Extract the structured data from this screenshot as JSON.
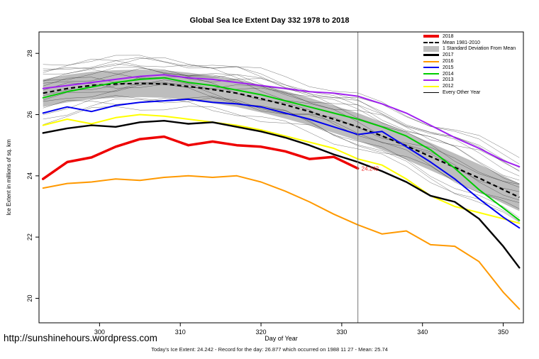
{
  "page": {
    "title": "Global Sea Ice Extent Day 332 1978 to 2018",
    "footer_url": "http://sunshinehours.wordpress.com",
    "footer_caption": "Today's Ice Extent: 24.242 - Record for the day: 26.877 which occurred on 1988 11 27 - Mean: 25.74"
  },
  "chart_data": {
    "type": "line",
    "title": "Global Sea Ice Extent Day 332 1978 to 2018",
    "xlabel": "Day of Year",
    "ylabel": "Ice Extent in millions of sq. km",
    "xlim": [
      292.5,
      352.5
    ],
    "ylim": [
      19.2,
      28.7
    ],
    "x_ticks": [
      300,
      310,
      320,
      330,
      340,
      350
    ],
    "y_ticks": [
      20,
      22,
      24,
      26,
      28
    ],
    "grid": false,
    "legend_position": "top-right",
    "x": [
      293,
      296,
      299,
      302,
      305,
      308,
      311,
      314,
      317,
      320,
      323,
      326,
      329,
      332,
      335,
      338,
      341,
      344,
      347,
      350,
      352
    ],
    "mean_series": {
      "name": "Mean 1981-2010",
      "color": "#000000",
      "dashed": true,
      "values": [
        26.7,
        26.85,
        26.95,
        27.0,
        27.02,
        27.0,
        26.92,
        26.82,
        26.7,
        26.52,
        26.32,
        26.1,
        25.85,
        25.6,
        25.3,
        24.98,
        24.63,
        24.28,
        23.93,
        23.55,
        23.3
      ]
    },
    "std_band": {
      "name": "1 Standard Deviation From Mean",
      "color": "#bdbdbd",
      "halfwidth": 0.45
    },
    "series": [
      {
        "name": "2018",
        "color": "#ee0000",
        "width": 3.5,
        "values": [
          23.9,
          24.45,
          24.6,
          24.95,
          25.2,
          25.28,
          25.0,
          25.12,
          25.0,
          24.95,
          24.8,
          24.55,
          24.62,
          24.242,
          null,
          null,
          null,
          null,
          null,
          null,
          null
        ]
      },
      {
        "name": "2017",
        "color": "#000000",
        "width": 2.4,
        "values": [
          25.4,
          25.55,
          25.65,
          25.6,
          25.75,
          25.8,
          25.7,
          25.75,
          25.6,
          25.45,
          25.25,
          25.0,
          24.7,
          24.45,
          24.15,
          23.8,
          23.35,
          23.15,
          22.6,
          21.7,
          21.0
        ]
      },
      {
        "name": "2016",
        "color": "#ff9900",
        "width": 2,
        "values": [
          23.6,
          23.75,
          23.8,
          23.9,
          23.85,
          23.95,
          24.0,
          23.95,
          24.0,
          23.8,
          23.5,
          23.15,
          22.75,
          22.4,
          22.1,
          22.2,
          21.75,
          21.7,
          21.2,
          20.2,
          19.65
        ]
      },
      {
        "name": "2015",
        "color": "#0000ee",
        "width": 2,
        "values": [
          26.05,
          26.25,
          26.1,
          26.3,
          26.4,
          26.45,
          26.5,
          26.4,
          26.35,
          26.25,
          26.05,
          25.85,
          25.6,
          25.35,
          25.45,
          24.95,
          24.45,
          23.9,
          23.25,
          22.65,
          22.3
        ]
      },
      {
        "name": "2014",
        "color": "#00cc00",
        "width": 2,
        "values": [
          26.55,
          26.75,
          26.9,
          27.05,
          27.15,
          27.2,
          27.05,
          26.95,
          26.8,
          26.65,
          26.45,
          26.25,
          26.05,
          25.85,
          25.6,
          25.3,
          24.85,
          24.25,
          23.55,
          22.95,
          22.55
        ]
      },
      {
        "name": "2013",
        "color": "#a020f0",
        "width": 2,
        "values": [
          26.85,
          26.95,
          27.05,
          27.15,
          27.25,
          27.3,
          27.2,
          27.15,
          27.05,
          26.95,
          26.85,
          26.75,
          26.7,
          26.6,
          26.35,
          26.05,
          25.65,
          25.25,
          24.9,
          24.5,
          24.3
        ]
      },
      {
        "name": "2012",
        "color": "#ffff00",
        "width": 2,
        "values": [
          25.65,
          25.85,
          25.7,
          25.9,
          26.0,
          25.95,
          25.85,
          25.75,
          25.65,
          25.5,
          25.3,
          25.1,
          24.9,
          24.55,
          24.35,
          23.9,
          23.35,
          23.0,
          22.8,
          22.6,
          22.45
        ]
      }
    ],
    "background": {
      "name": "Every Other Year",
      "color": "#1a1a1a",
      "width": 0.5,
      "pairs": [
        [
          0.6,
          1.2
        ],
        [
          0.4,
          0.6
        ],
        [
          0.8,
          0.2
        ],
        [
          -0.5,
          -0.8
        ],
        [
          0.2,
          1.0
        ],
        [
          -0.8,
          0.4
        ],
        [
          0.5,
          -0.5
        ],
        [
          -0.3,
          0.9
        ],
        [
          0.7,
          0.8
        ],
        [
          -0.6,
          0.1
        ],
        [
          0.3,
          -0.9
        ],
        [
          -0.2,
          1.4
        ],
        [
          0.9,
          0.5
        ],
        [
          -0.9,
          -0.3
        ],
        [
          0.1,
          -0.7
        ],
        [
          -0.4,
          1.1
        ],
        [
          0.65,
          -0.1
        ]
      ]
    },
    "annotation": {
      "day": 332,
      "value": 24.242,
      "label": "24.242",
      "color": "#ee2222",
      "vline_color": "#777777"
    },
    "legend": [
      {
        "label": "2018",
        "swatch": "line",
        "color": "#ee0000",
        "width": 4
      },
      {
        "label": "Mean 1981-2010",
        "swatch": "dashed",
        "color": "#000000"
      },
      {
        "label": "1 Standard Deviation From Mean",
        "swatch": "box",
        "color": "#bdbdbd"
      },
      {
        "label": "2017",
        "swatch": "line",
        "color": "#000000",
        "width": 3
      },
      {
        "label": "2016",
        "swatch": "line",
        "color": "#ff9900",
        "width": 2.5
      },
      {
        "label": "2015",
        "swatch": "line",
        "color": "#0000ee",
        "width": 2.5
      },
      {
        "label": "2014",
        "swatch": "line",
        "color": "#00cc00",
        "width": 2.5
      },
      {
        "label": "2013",
        "swatch": "line",
        "color": "#a020f0",
        "width": 2.5
      },
      {
        "label": "2012",
        "swatch": "line",
        "color": "#ffff00",
        "width": 2.5
      },
      {
        "label": "Every Other Year",
        "swatch": "line",
        "color": "#000000",
        "width": 1
      }
    ]
  }
}
